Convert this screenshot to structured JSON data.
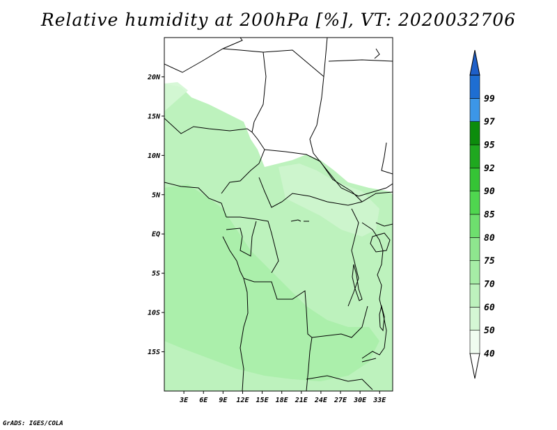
{
  "title": "Relative humidity at 200hPa [%], VT: 2020032706",
  "credit": "GrADS: IGES/COLA",
  "map": {
    "lon_range": [
      0,
      35
    ],
    "lat_range": [
      -20,
      25
    ],
    "lat_ticks": [
      {
        "value": 20,
        "label": "20N"
      },
      {
        "value": 15,
        "label": "15N"
      },
      {
        "value": 10,
        "label": "10N"
      },
      {
        "value": 5,
        "label": "5N"
      },
      {
        "value": 0,
        "label": "EQ"
      },
      {
        "value": -5,
        "label": "5S"
      },
      {
        "value": -10,
        "label": "10S"
      },
      {
        "value": -15,
        "label": "15S"
      }
    ],
    "lon_ticks": [
      {
        "value": 3,
        "label": "3E"
      },
      {
        "value": 6,
        "label": "6E"
      },
      {
        "value": 9,
        "label": "9E"
      },
      {
        "value": 12,
        "label": "12E"
      },
      {
        "value": 15,
        "label": "15E"
      },
      {
        "value": 18,
        "label": "18E"
      },
      {
        "value": 21,
        "label": "21E"
      },
      {
        "value": 24,
        "label": "24E"
      },
      {
        "value": 27,
        "label": "27E"
      },
      {
        "value": 30,
        "label": "30E"
      },
      {
        "value": 33,
        "label": "33E"
      }
    ]
  },
  "colorbar": {
    "levels": [
      {
        "label": "40",
        "color": "#f0fcf0"
      },
      {
        "label": "50",
        "color": "#d4f7d4"
      },
      {
        "label": "60",
        "color": "#bdf2bd"
      },
      {
        "label": "70",
        "color": "#a6eda6"
      },
      {
        "label": "75",
        "color": "#8ee68e"
      },
      {
        "label": "80",
        "color": "#6edf6e"
      },
      {
        "label": "85",
        "color": "#4fd64f"
      },
      {
        "label": "90",
        "color": "#35c435"
      },
      {
        "label": "92",
        "color": "#1fa81f"
      },
      {
        "label": "95",
        "color": "#0c8c0c"
      },
      {
        "label": "97",
        "color": "#3c96e8"
      },
      {
        "label": "99",
        "color": "#1e6ed2"
      }
    ],
    "below_color": "#ffffff",
    "above_color": "#1e5fc8"
  }
}
